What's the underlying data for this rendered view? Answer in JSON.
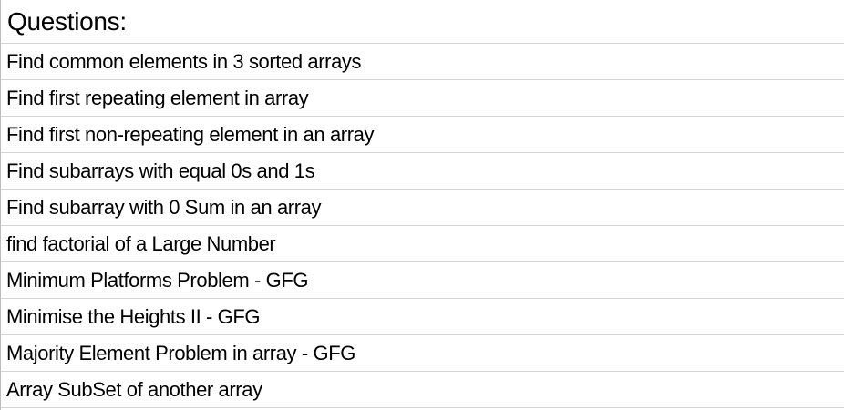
{
  "header": {
    "title": "Questions:"
  },
  "rows": [
    "Find common elements in 3 sorted arrays",
    "Find first repeating element in array",
    "Find first non-repeating element in an array",
    "Find subarrays with equal 0s and 1s",
    "Find subarray with 0 Sum in an array",
    "find factorial of a Large Number",
    "Minimum Platforms Problem - GFG",
    "Minimise the Heights II - GFG",
    "Majority Element Problem in array - GFG",
    "Array SubSet of another array"
  ]
}
